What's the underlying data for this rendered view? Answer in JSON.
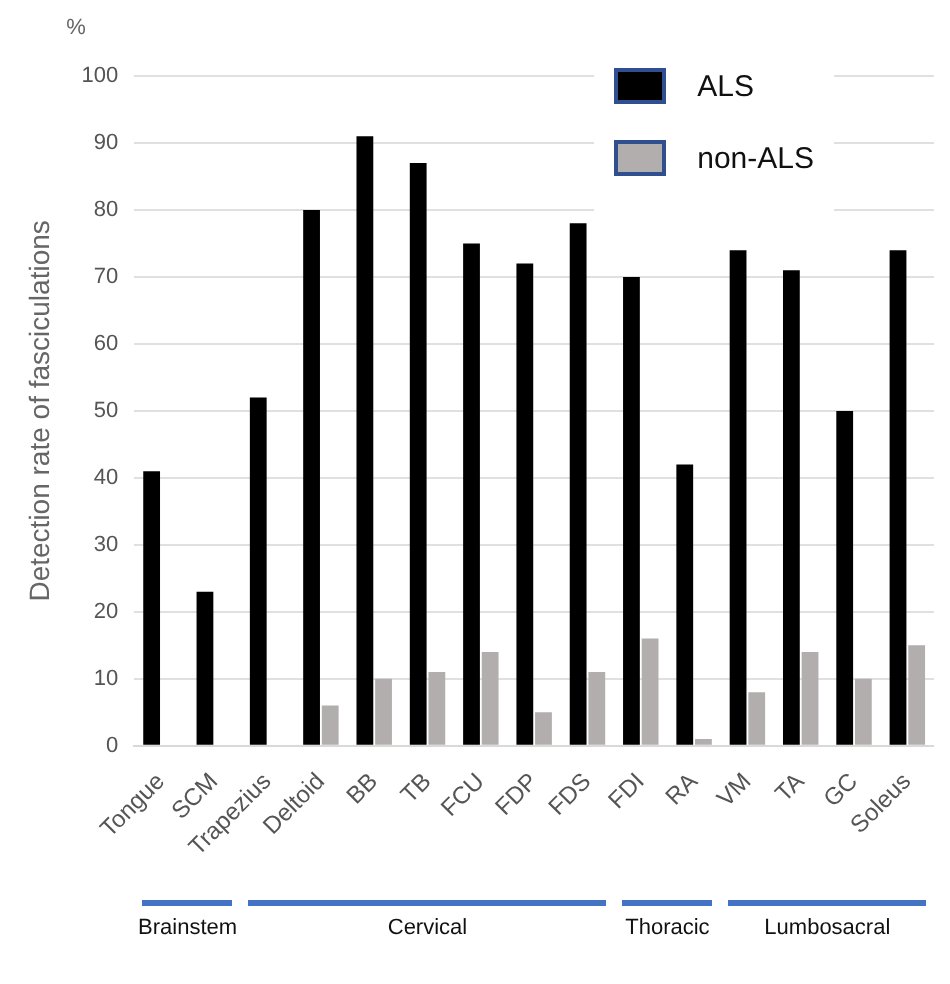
{
  "chart_data": {
    "type": "bar",
    "ylabel": "Detection rate of fasciculations",
    "categories": [
      "Tongue",
      "SCM",
      "Trapezius",
      "Deltoid",
      "BB",
      "TB",
      "FCU",
      "FDP",
      "FDS",
      "FDI",
      "RA",
      "VM",
      "TA",
      "GC",
      "Soleus"
    ],
    "series": [
      {
        "name": "ALS",
        "color": "#000000",
        "values": [
          41,
          23,
          52,
          80,
          91,
          87,
          75,
          72,
          78,
          70,
          42,
          74,
          71,
          50,
          74
        ]
      },
      {
        "name": "non-ALS",
        "color": "#b3aeae",
        "values": [
          0,
          0,
          0,
          6,
          10,
          11,
          14,
          5,
          11,
          16,
          1,
          8,
          14,
          10,
          15
        ]
      }
    ],
    "ylim": [
      0,
      100
    ],
    "yticks": [
      0,
      10,
      20,
      30,
      40,
      50,
      60,
      70,
      80,
      90,
      100
    ],
    "grid": "y",
    "legend": "top right",
    "annotations": [
      "%",
      "Brainstem",
      "Cervical",
      "Thoracic",
      "Lumbosacral"
    ]
  }
}
